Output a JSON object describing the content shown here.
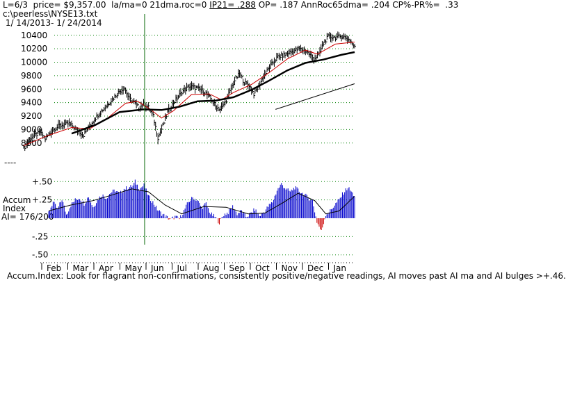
{
  "header": {
    "line1_prefix": "L=6/3  price= $9,357.00  la/ma=0 21dma.roc=0 ",
    "line1_ip21": "IP21= .288",
    "line1_suffix": " OP= .187 AnnRoc65dma= .204 CP%-PR%=  .33",
    "file": "c:\\peerless\\NYSE13.txt",
    "date_range": " 1/ 14/2013- 1/ 24/2014"
  },
  "footer_note": "Accum.Index: Look for flagrant non-confirmations, consistently positive/negative readings, AI moves past AI ma and AI bulges >+.46.",
  "colors": {
    "grid": "#008000",
    "price_bar": "#000000",
    "ma_thin": "#cc0000",
    "ma_thick": "#000000",
    "accum_pos": "#0000cc",
    "accum_neg": "#cc0000",
    "trendline": "#000000",
    "marker_line": "#006600"
  },
  "chart_data": [
    {
      "type": "line",
      "name_note": "price panel (high-low bars with moving averages)",
      "yticks": [
        8800,
        9000,
        9200,
        9400,
        9600,
        9800,
        10000,
        10200,
        10400
      ],
      "ytick_labels": [
        "8800",
        "9000",
        "9200",
        "9400",
        "9600",
        "9800",
        "10000",
        "10200",
        "10400"
      ],
      "extra_label": "----",
      "ylim": [
        8550,
        10460
      ],
      "x_months": [
        "Feb",
        "Mar",
        "Apr",
        "May",
        "Jun",
        "Jul",
        "Aug",
        "Sep",
        "Oct",
        "Nov",
        "Dec",
        "Jan"
      ],
      "price_keypoints": [
        [
          0,
          8720
        ],
        [
          6,
          8880
        ],
        [
          14,
          8960
        ],
        [
          18,
          8860
        ],
        [
          24,
          8990
        ],
        [
          30,
          9060
        ],
        [
          38,
          9090
        ],
        [
          44,
          9000
        ],
        [
          50,
          8920
        ],
        [
          56,
          9080
        ],
        [
          62,
          9220
        ],
        [
          68,
          9330
        ],
        [
          74,
          9450
        ],
        [
          80,
          9570
        ],
        [
          84,
          9620
        ],
        [
          88,
          9460
        ],
        [
          92,
          9410
        ],
        [
          96,
          9320
        ],
        [
          100,
          9380
        ],
        [
          104,
          9330
        ],
        [
          108,
          9200
        ],
        [
          112,
          8880
        ],
        [
          116,
          9050
        ],
        [
          120,
          9260
        ],
        [
          126,
          9420
        ],
        [
          132,
          9560
        ],
        [
          138,
          9640
        ],
        [
          144,
          9620
        ],
        [
          150,
          9570
        ],
        [
          156,
          9460
        ],
        [
          160,
          9350
        ],
        [
          164,
          9300
        ],
        [
          168,
          9400
        ],
        [
          172,
          9560
        ],
        [
          176,
          9730
        ],
        [
          180,
          9830
        ],
        [
          184,
          9700
        ],
        [
          188,
          9660
        ],
        [
          192,
          9530
        ],
        [
          196,
          9640
        ],
        [
          200,
          9790
        ],
        [
          206,
          9950
        ],
        [
          212,
          10080
        ],
        [
          218,
          10110
        ],
        [
          224,
          10160
        ],
        [
          230,
          10200
        ],
        [
          236,
          10160
        ],
        [
          242,
          10050
        ],
        [
          246,
          10110
        ],
        [
          250,
          10280
        ],
        [
          254,
          10380
        ],
        [
          260,
          10370
        ],
        [
          266,
          10390
        ],
        [
          272,
          10330
        ],
        [
          276,
          10220
        ]
      ],
      "ma_thin": [
        [
          0,
          8760
        ],
        [
          20,
          8910
        ],
        [
          40,
          9030
        ],
        [
          55,
          9010
        ],
        [
          70,
          9170
        ],
        [
          85,
          9390
        ],
        [
          95,
          9420
        ],
        [
          105,
          9310
        ],
        [
          115,
          9170
        ],
        [
          125,
          9280
        ],
        [
          140,
          9520
        ],
        [
          155,
          9530
        ],
        [
          165,
          9440
        ],
        [
          175,
          9550
        ],
        [
          190,
          9670
        ],
        [
          205,
          9850
        ],
        [
          220,
          10050
        ],
        [
          235,
          10180
        ],
        [
          245,
          10120
        ],
        [
          260,
          10270
        ],
        [
          276,
          10300
        ]
      ],
      "ma_thick": [
        [
          40,
          8940
        ],
        [
          60,
          9070
        ],
        [
          80,
          9260
        ],
        [
          100,
          9300
        ],
        [
          115,
          9290
        ],
        [
          130,
          9340
        ],
        [
          145,
          9420
        ],
        [
          160,
          9430
        ],
        [
          175,
          9480
        ],
        [
          190,
          9590
        ],
        [
          205,
          9730
        ],
        [
          220,
          9880
        ],
        [
          235,
          9990
        ],
        [
          250,
          10040
        ],
        [
          265,
          10110
        ],
        [
          276,
          10150
        ]
      ],
      "trendline": [
        [
          210,
          9300
        ],
        [
          276,
          9680
        ]
      ]
    },
    {
      "type": "bar",
      "name_note": "Accumulation Index panel",
      "label_lines": [
        "Accum",
        "Index",
        "AI= 176/200"
      ],
      "yticks": [
        0.5,
        0.25,
        -0.25,
        -0.5
      ],
      "ytick_labels": [
        "+.50",
        "+.25",
        "-.25",
        "-.50"
      ],
      "ylim": [
        -0.55,
        0.55
      ],
      "ai_keypoints": [
        [
          0,
          0.08
        ],
        [
          4,
          0.22
        ],
        [
          8,
          0.12
        ],
        [
          12,
          0.26
        ],
        [
          16,
          0.05
        ],
        [
          20,
          0.18
        ],
        [
          24,
          0.25
        ],
        [
          28,
          0.28
        ],
        [
          32,
          0.2
        ],
        [
          36,
          0.3
        ],
        [
          40,
          0.15
        ],
        [
          44,
          0.25
        ],
        [
          48,
          0.32
        ],
        [
          52,
          0.28
        ],
        [
          56,
          0.35
        ],
        [
          60,
          0.38
        ],
        [
          64,
          0.33
        ],
        [
          68,
          0.4
        ],
        [
          72,
          0.42
        ],
        [
          76,
          0.44
        ],
        [
          78,
          0.5
        ],
        [
          82,
          0.4
        ],
        [
          86,
          0.45
        ],
        [
          90,
          0.3
        ],
        [
          94,
          0.22
        ],
        [
          98,
          0.12
        ],
        [
          102,
          0.06
        ],
        [
          106,
          0.02
        ],
        [
          110,
          -0.02
        ],
        [
          114,
          0.02
        ],
        [
          118,
          -0.01
        ],
        [
          122,
          0.1
        ],
        [
          126,
          0.22
        ],
        [
          130,
          0.28
        ],
        [
          134,
          0.25
        ],
        [
          138,
          0.14
        ],
        [
          142,
          0.2
        ],
        [
          146,
          0.06
        ],
        [
          150,
          0.02
        ],
        [
          154,
          -0.06
        ],
        [
          158,
          0.05
        ],
        [
          162,
          0.08
        ],
        [
          166,
          0.16
        ],
        [
          170,
          0.06
        ],
        [
          174,
          0.1
        ],
        [
          178,
          0.02
        ],
        [
          182,
          0.06
        ],
        [
          186,
          0.12
        ],
        [
          190,
          0.03
        ],
        [
          194,
          0.08
        ],
        [
          198,
          0.16
        ],
        [
          202,
          0.22
        ],
        [
          206,
          0.38
        ],
        [
          210,
          0.47
        ],
        [
          214,
          0.4
        ],
        [
          218,
          0.36
        ],
        [
          222,
          0.42
        ],
        [
          226,
          0.37
        ],
        [
          230,
          0.33
        ],
        [
          234,
          0.28
        ],
        [
          238,
          0.24
        ],
        [
          242,
          -0.05
        ],
        [
          246,
          -0.18
        ],
        [
          250,
          0.05
        ],
        [
          254,
          0.1
        ],
        [
          258,
          0.18
        ],
        [
          262,
          0.25
        ],
        [
          266,
          0.35
        ],
        [
          270,
          0.42
        ],
        [
          276,
          0.3
        ]
      ],
      "ai_ma": [
        [
          0,
          0.1
        ],
        [
          20,
          0.18
        ],
        [
          40,
          0.24
        ],
        [
          60,
          0.33
        ],
        [
          75,
          0.4
        ],
        [
          90,
          0.36
        ],
        [
          105,
          0.18
        ],
        [
          120,
          0.06
        ],
        [
          140,
          0.16
        ],
        [
          160,
          0.15
        ],
        [
          180,
          0.06
        ],
        [
          195,
          0.07
        ],
        [
          210,
          0.2
        ],
        [
          225,
          0.34
        ],
        [
          240,
          0.24
        ],
        [
          250,
          0.06
        ],
        [
          262,
          0.1
        ],
        [
          276,
          0.3
        ]
      ]
    }
  ]
}
